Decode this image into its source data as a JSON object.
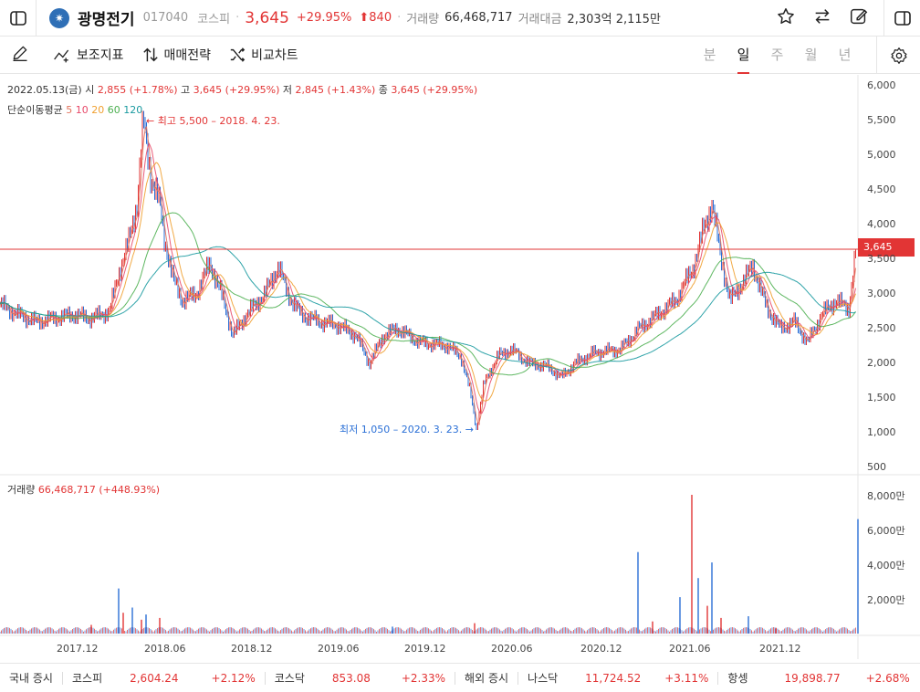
{
  "header": {
    "name": "광명전기",
    "code": "017040",
    "market": "코스피",
    "price": "3,645",
    "pct": "+29.95%",
    "change": "840",
    "volume_label": "거래량",
    "volume": "66,468,717",
    "value_label": "거래대금",
    "value": "2,303억 2,115만"
  },
  "toolbar": {
    "indicators": "보조지표",
    "strategy": "매매전략",
    "compare": "비교차트",
    "periods": [
      "분",
      "일",
      "주",
      "월",
      "년"
    ],
    "active_period": "일"
  },
  "chart_info": {
    "ohlc_date": "2022.05.13(금)",
    "open_label": "시",
    "open": "2,855 (+1.78%)",
    "high_label": "고",
    "high": "3,645 (+29.95%)",
    "low_label": "저",
    "low": "2,845 (+1.43%)",
    "close_label": "종",
    "close": "3,645 (+29.95%)",
    "ma_label": "단순이동평균",
    "ma_periods": [
      "5",
      "10",
      "20",
      "60",
      "120"
    ],
    "volume_label": "거래량",
    "volume_value": "66,468,717 (+448.93%)",
    "high_annotation": "← 최고 5,500 – 2018. 4. 23.",
    "low_annotation": "최저 1,050 – 2020. 3. 23. →",
    "current_price_tag": "3,645"
  },
  "colors": {
    "up": "#e23535",
    "down": "#2a6fd6",
    "ma5": "#e2735c",
    "ma10": "#e84a6a",
    "ma20": "#f0a030",
    "ma60": "#4caf50",
    "ma120": "#1a9aa0"
  },
  "chart_data": {
    "type": "line",
    "y_ticks": [
      "6,000",
      "5,500",
      "5,000",
      "4,500",
      "4,000",
      "3,500",
      "3,000",
      "2,500",
      "2,000",
      "1,500",
      "1,000",
      "500"
    ],
    "ylim": [
      500,
      6000
    ],
    "volume_ticks": [
      "8,000만",
      "6,000만",
      "4,000만",
      "2,000만"
    ],
    "x_ticks": [
      "2017.12",
      "2018.06",
      "2018.12",
      "2019.06",
      "2019.12",
      "2020.06",
      "2020.12",
      "2021.06",
      "2021.12"
    ],
    "series": [
      {
        "values": [
          [
            0,
            2850
          ],
          [
            20,
            2700
          ],
          [
            40,
            2600
          ],
          [
            60,
            2650
          ],
          [
            80,
            2700
          ],
          [
            100,
            2650
          ],
          [
            120,
            2750
          ],
          [
            130,
            3300
          ],
          [
            140,
            3700
          ],
          [
            150,
            4300
          ],
          [
            157,
            5500
          ],
          [
            165,
            4700
          ],
          [
            175,
            4300
          ],
          [
            180,
            3800
          ],
          [
            190,
            3200
          ],
          [
            200,
            2900
          ],
          [
            215,
            3000
          ],
          [
            230,
            3450
          ],
          [
            245,
            2900
          ],
          [
            255,
            2400
          ],
          [
            270,
            2700
          ],
          [
            290,
            3000
          ],
          [
            305,
            3400
          ],
          [
            315,
            3000
          ],
          [
            330,
            2700
          ],
          [
            350,
            2600
          ],
          [
            370,
            2550
          ],
          [
            390,
            2400
          ],
          [
            405,
            2000
          ],
          [
            420,
            2400
          ],
          [
            435,
            2500
          ],
          [
            460,
            2300
          ],
          [
            490,
            2250
          ],
          [
            505,
            2100
          ],
          [
            515,
            1600
          ],
          [
            522,
            1050
          ],
          [
            530,
            1700
          ],
          [
            545,
            2100
          ],
          [
            560,
            2200
          ],
          [
            580,
            2000
          ],
          [
            600,
            1950
          ],
          [
            615,
            1800
          ],
          [
            630,
            2000
          ],
          [
            650,
            2150
          ],
          [
            680,
            2200
          ],
          [
            700,
            2500
          ],
          [
            720,
            2700
          ],
          [
            740,
            2900
          ],
          [
            760,
            3400
          ],
          [
            770,
            3900
          ],
          [
            780,
            4300
          ],
          [
            790,
            3500
          ],
          [
            800,
            2900
          ],
          [
            815,
            3200
          ],
          [
            825,
            3400
          ],
          [
            840,
            2800
          ],
          [
            855,
            2500
          ],
          [
            870,
            2600
          ],
          [
            885,
            2300
          ],
          [
            900,
            2700
          ],
          [
            915,
            2900
          ],
          [
            930,
            2800
          ],
          [
            938,
            3645
          ]
        ]
      }
    ],
    "volume": [
      [
        100,
        0.5
      ],
      [
        130,
        2.6
      ],
      [
        135,
        1.2
      ],
      [
        145,
        1.5
      ],
      [
        155,
        0.8
      ],
      [
        160,
        1.1
      ],
      [
        175,
        0.9
      ],
      [
        430,
        0.4
      ],
      [
        520,
        0.6
      ],
      [
        699,
        4.7
      ],
      [
        715,
        0.7
      ],
      [
        745,
        2.1
      ],
      [
        758,
        8.0
      ],
      [
        765,
        3.2
      ],
      [
        775,
        1.6
      ],
      [
        780,
        4.1
      ],
      [
        790,
        0.9
      ],
      [
        820,
        1.0
      ],
      [
        850,
        0.3
      ],
      [
        940,
        6.6
      ]
    ],
    "grid": false,
    "legend": "top-left"
  },
  "ticker": {
    "domestic_label": "국내 증시",
    "kospi_label": "코스피",
    "kospi": "2,604.24",
    "kospi_pct": "+2.12%",
    "kosdaq_label": "코스닥",
    "kosdaq": "853.08",
    "kosdaq_pct": "+2.33%",
    "overseas_label": "해외 증시",
    "nasdaq_label": "나스닥",
    "nasdaq": "11,724.52",
    "nasdaq_pct": "+3.11%",
    "hangseng_label": "항셍",
    "hangseng": "19,898.77",
    "hangseng_pct": "+2.68%"
  }
}
